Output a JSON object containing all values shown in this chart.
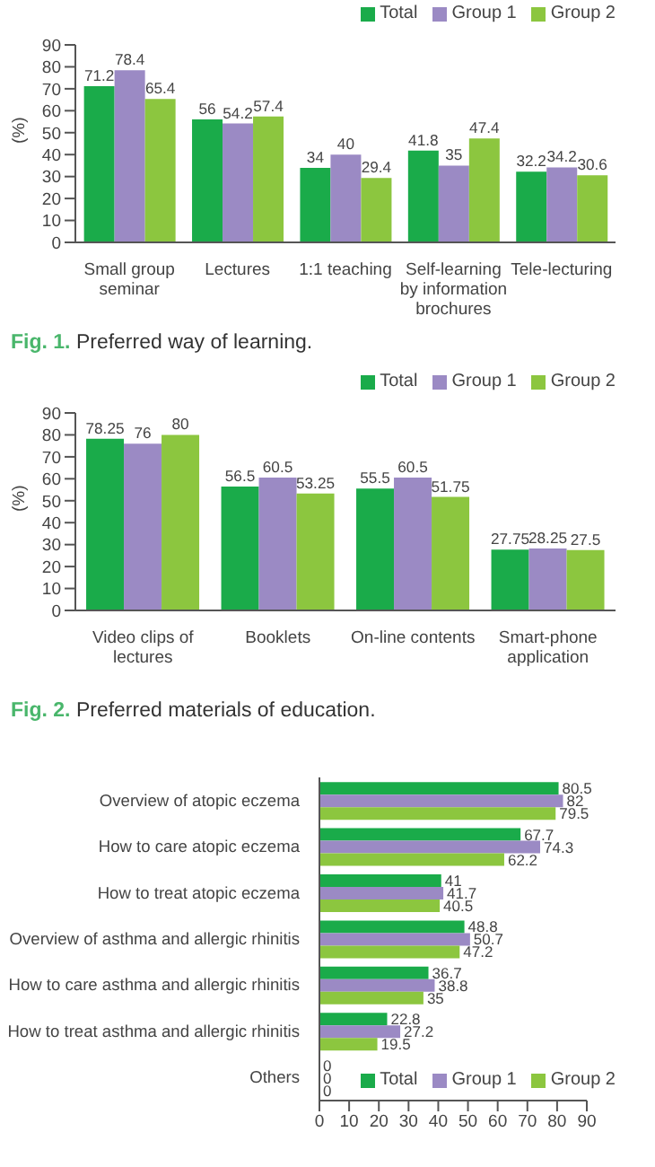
{
  "chart_data": [
    {
      "type": "bar",
      "title": "Fig. 1. Preferred way of learning.",
      "ylabel": "(%)",
      "categories": [
        "Small group seminar",
        "Lectures",
        "1:1 teaching",
        "Self-learning by information brochures",
        "Tele-lecturing"
      ],
      "series": [
        {
          "name": "Total",
          "color": "#1aab4a",
          "values": [
            71.2,
            56,
            34,
            41.8,
            32.2
          ]
        },
        {
          "name": "Group 1",
          "color": "#9b8ac4",
          "values": [
            78.4,
            54.2,
            40,
            35,
            34.2
          ]
        },
        {
          "name": "Group 2",
          "color": "#8cc63f",
          "values": [
            65.4,
            57.4,
            29.4,
            47.4,
            30.6
          ]
        }
      ],
      "ylim": [
        0,
        90
      ],
      "yticks": [
        0,
        10,
        20,
        30,
        40,
        50,
        60,
        70,
        80,
        90
      ],
      "data_labels": true,
      "legend": "top right",
      "grid": false
    },
    {
      "type": "bar",
      "title": "Fig. 2. Preferred materials of education.",
      "ylabel": "(%)",
      "categories": [
        "Video clips of lectures",
        "Booklets",
        "On-line contents",
        "Smart-phone application"
      ],
      "series": [
        {
          "name": "Total",
          "color": "#1aab4a",
          "values": [
            78.25,
            56.5,
            55.5,
            27.75
          ]
        },
        {
          "name": "Group 1",
          "color": "#9b8ac4",
          "values": [
            76,
            60.5,
            60.5,
            28.25
          ]
        },
        {
          "name": "Group 2",
          "color": "#8cc63f",
          "values": [
            80,
            53.25,
            51.75,
            27.5
          ]
        }
      ],
      "ylim": [
        0,
        90
      ],
      "yticks": [
        0,
        10,
        20,
        30,
        40,
        50,
        60,
        70,
        80,
        90
      ],
      "data_labels": true,
      "legend": "top right",
      "grid": false
    },
    {
      "type": "bar",
      "orientation": "horizontal",
      "categories": [
        "Overview of atopic eczema",
        "How to care atopic eczema",
        "How to treat atopic eczema",
        "Overview of asthma and allergic rhinitis",
        "How to care asthma and allergic rhinitis",
        "How to treat asthma and allergic rhinitis",
        "Others"
      ],
      "series": [
        {
          "name": "Total",
          "color": "#1aab4a",
          "values": [
            80.5,
            67.7,
            41,
            48.8,
            36.7,
            22.8,
            0
          ]
        },
        {
          "name": "Group 1",
          "color": "#9b8ac4",
          "values": [
            82,
            74.3,
            41.7,
            50.7,
            38.8,
            27.2,
            0
          ]
        },
        {
          "name": "Group 2",
          "color": "#8cc63f",
          "values": [
            79.5,
            62.2,
            40.5,
            47.2,
            35,
            19.5,
            0
          ]
        }
      ],
      "xlim": [
        0,
        90
      ],
      "xticks": [
        0,
        10,
        20,
        30,
        40,
        50,
        60,
        70,
        80,
        90
      ],
      "data_labels": true,
      "legend": "bottom right",
      "grid": false
    }
  ]
}
